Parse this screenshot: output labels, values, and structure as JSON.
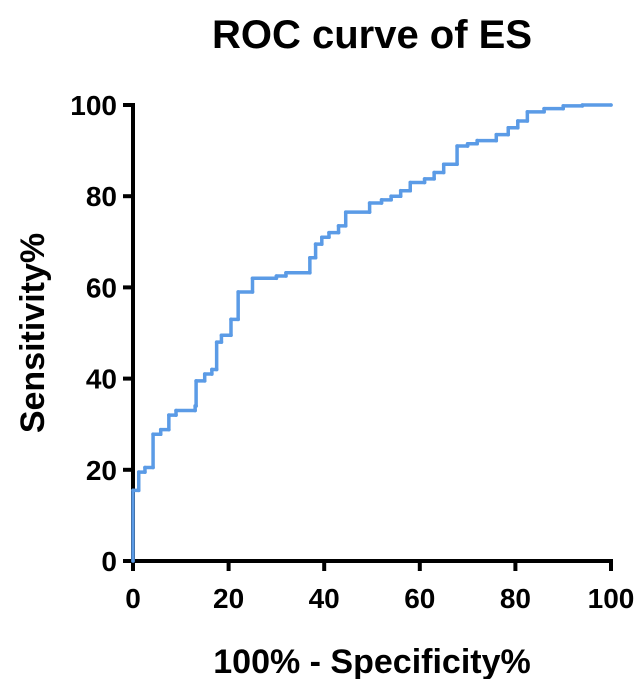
{
  "chart_data": {
    "type": "line",
    "title": "ROC curve of ES",
    "xlabel": "100% - Specificity%",
    "ylabel": "Sensitivity%",
    "xlim": [
      0,
      100
    ],
    "ylim": [
      0,
      100
    ],
    "x_ticks": [
      "0",
      "20",
      "40",
      "60",
      "80",
      "100"
    ],
    "y_ticks": [
      "0",
      "20",
      "40",
      "60",
      "80",
      "100"
    ],
    "grid": false,
    "legend": "none",
    "line_style": "step",
    "series_color": "#5B9BE6",
    "series": [
      {
        "points": [
          [
            0,
            0
          ],
          [
            0,
            15.5
          ],
          [
            1.2,
            15.5
          ],
          [
            1.2,
            19.5
          ],
          [
            2.5,
            19.5
          ],
          [
            2.5,
            20.5
          ],
          [
            4.2,
            20.5
          ],
          [
            4.2,
            27.8
          ],
          [
            5.8,
            27.8
          ],
          [
            5.8,
            28.8
          ],
          [
            7.5,
            28.8
          ],
          [
            7.5,
            32
          ],
          [
            9,
            32
          ],
          [
            9,
            33
          ],
          [
            13,
            33
          ],
          [
            13,
            34
          ],
          [
            13.2,
            34
          ],
          [
            13.2,
            39.5
          ],
          [
            15,
            39.5
          ],
          [
            15,
            41
          ],
          [
            16.5,
            41
          ],
          [
            16.5,
            42
          ],
          [
            17.5,
            42
          ],
          [
            17.5,
            48
          ],
          [
            18.5,
            48
          ],
          [
            18.5,
            49.5
          ],
          [
            20.5,
            49.5
          ],
          [
            20.5,
            53
          ],
          [
            22,
            53
          ],
          [
            22,
            59
          ],
          [
            25,
            59
          ],
          [
            25,
            62
          ],
          [
            30,
            62
          ],
          [
            30,
            62.5
          ],
          [
            32,
            62.5
          ],
          [
            32,
            63.2
          ],
          [
            37,
            63.2
          ],
          [
            37,
            66.5
          ],
          [
            38.2,
            66.5
          ],
          [
            38.2,
            69.5
          ],
          [
            39.5,
            69.5
          ],
          [
            39.5,
            71
          ],
          [
            41,
            71
          ],
          [
            41,
            72
          ],
          [
            43,
            72
          ],
          [
            43,
            73.5
          ],
          [
            44.5,
            73.5
          ],
          [
            44.5,
            76.5
          ],
          [
            49.5,
            76.5
          ],
          [
            49.5,
            78.5
          ],
          [
            52,
            78.5
          ],
          [
            52,
            79.2
          ],
          [
            54,
            79.2
          ],
          [
            54,
            80
          ],
          [
            56,
            80
          ],
          [
            56,
            81.2
          ],
          [
            58,
            81.2
          ],
          [
            58,
            83
          ],
          [
            61,
            83
          ],
          [
            61,
            83.8
          ],
          [
            63,
            83.8
          ],
          [
            63,
            85.2
          ],
          [
            65,
            85.2
          ],
          [
            65,
            87
          ],
          [
            67.8,
            87
          ],
          [
            67.8,
            91
          ],
          [
            70,
            91
          ],
          [
            70,
            91.5
          ],
          [
            72,
            91.5
          ],
          [
            72,
            92.2
          ],
          [
            76,
            92.2
          ],
          [
            76,
            93.5
          ],
          [
            78.5,
            93.5
          ],
          [
            78.5,
            95
          ],
          [
            80.5,
            95
          ],
          [
            80.5,
            96.5
          ],
          [
            82.5,
            96.5
          ],
          [
            82.5,
            98.5
          ],
          [
            86,
            98.5
          ],
          [
            86,
            99.2
          ],
          [
            90,
            99.2
          ],
          [
            90,
            99.8
          ],
          [
            94,
            99.8
          ],
          [
            94,
            100
          ],
          [
            100,
            100
          ]
        ]
      }
    ]
  }
}
